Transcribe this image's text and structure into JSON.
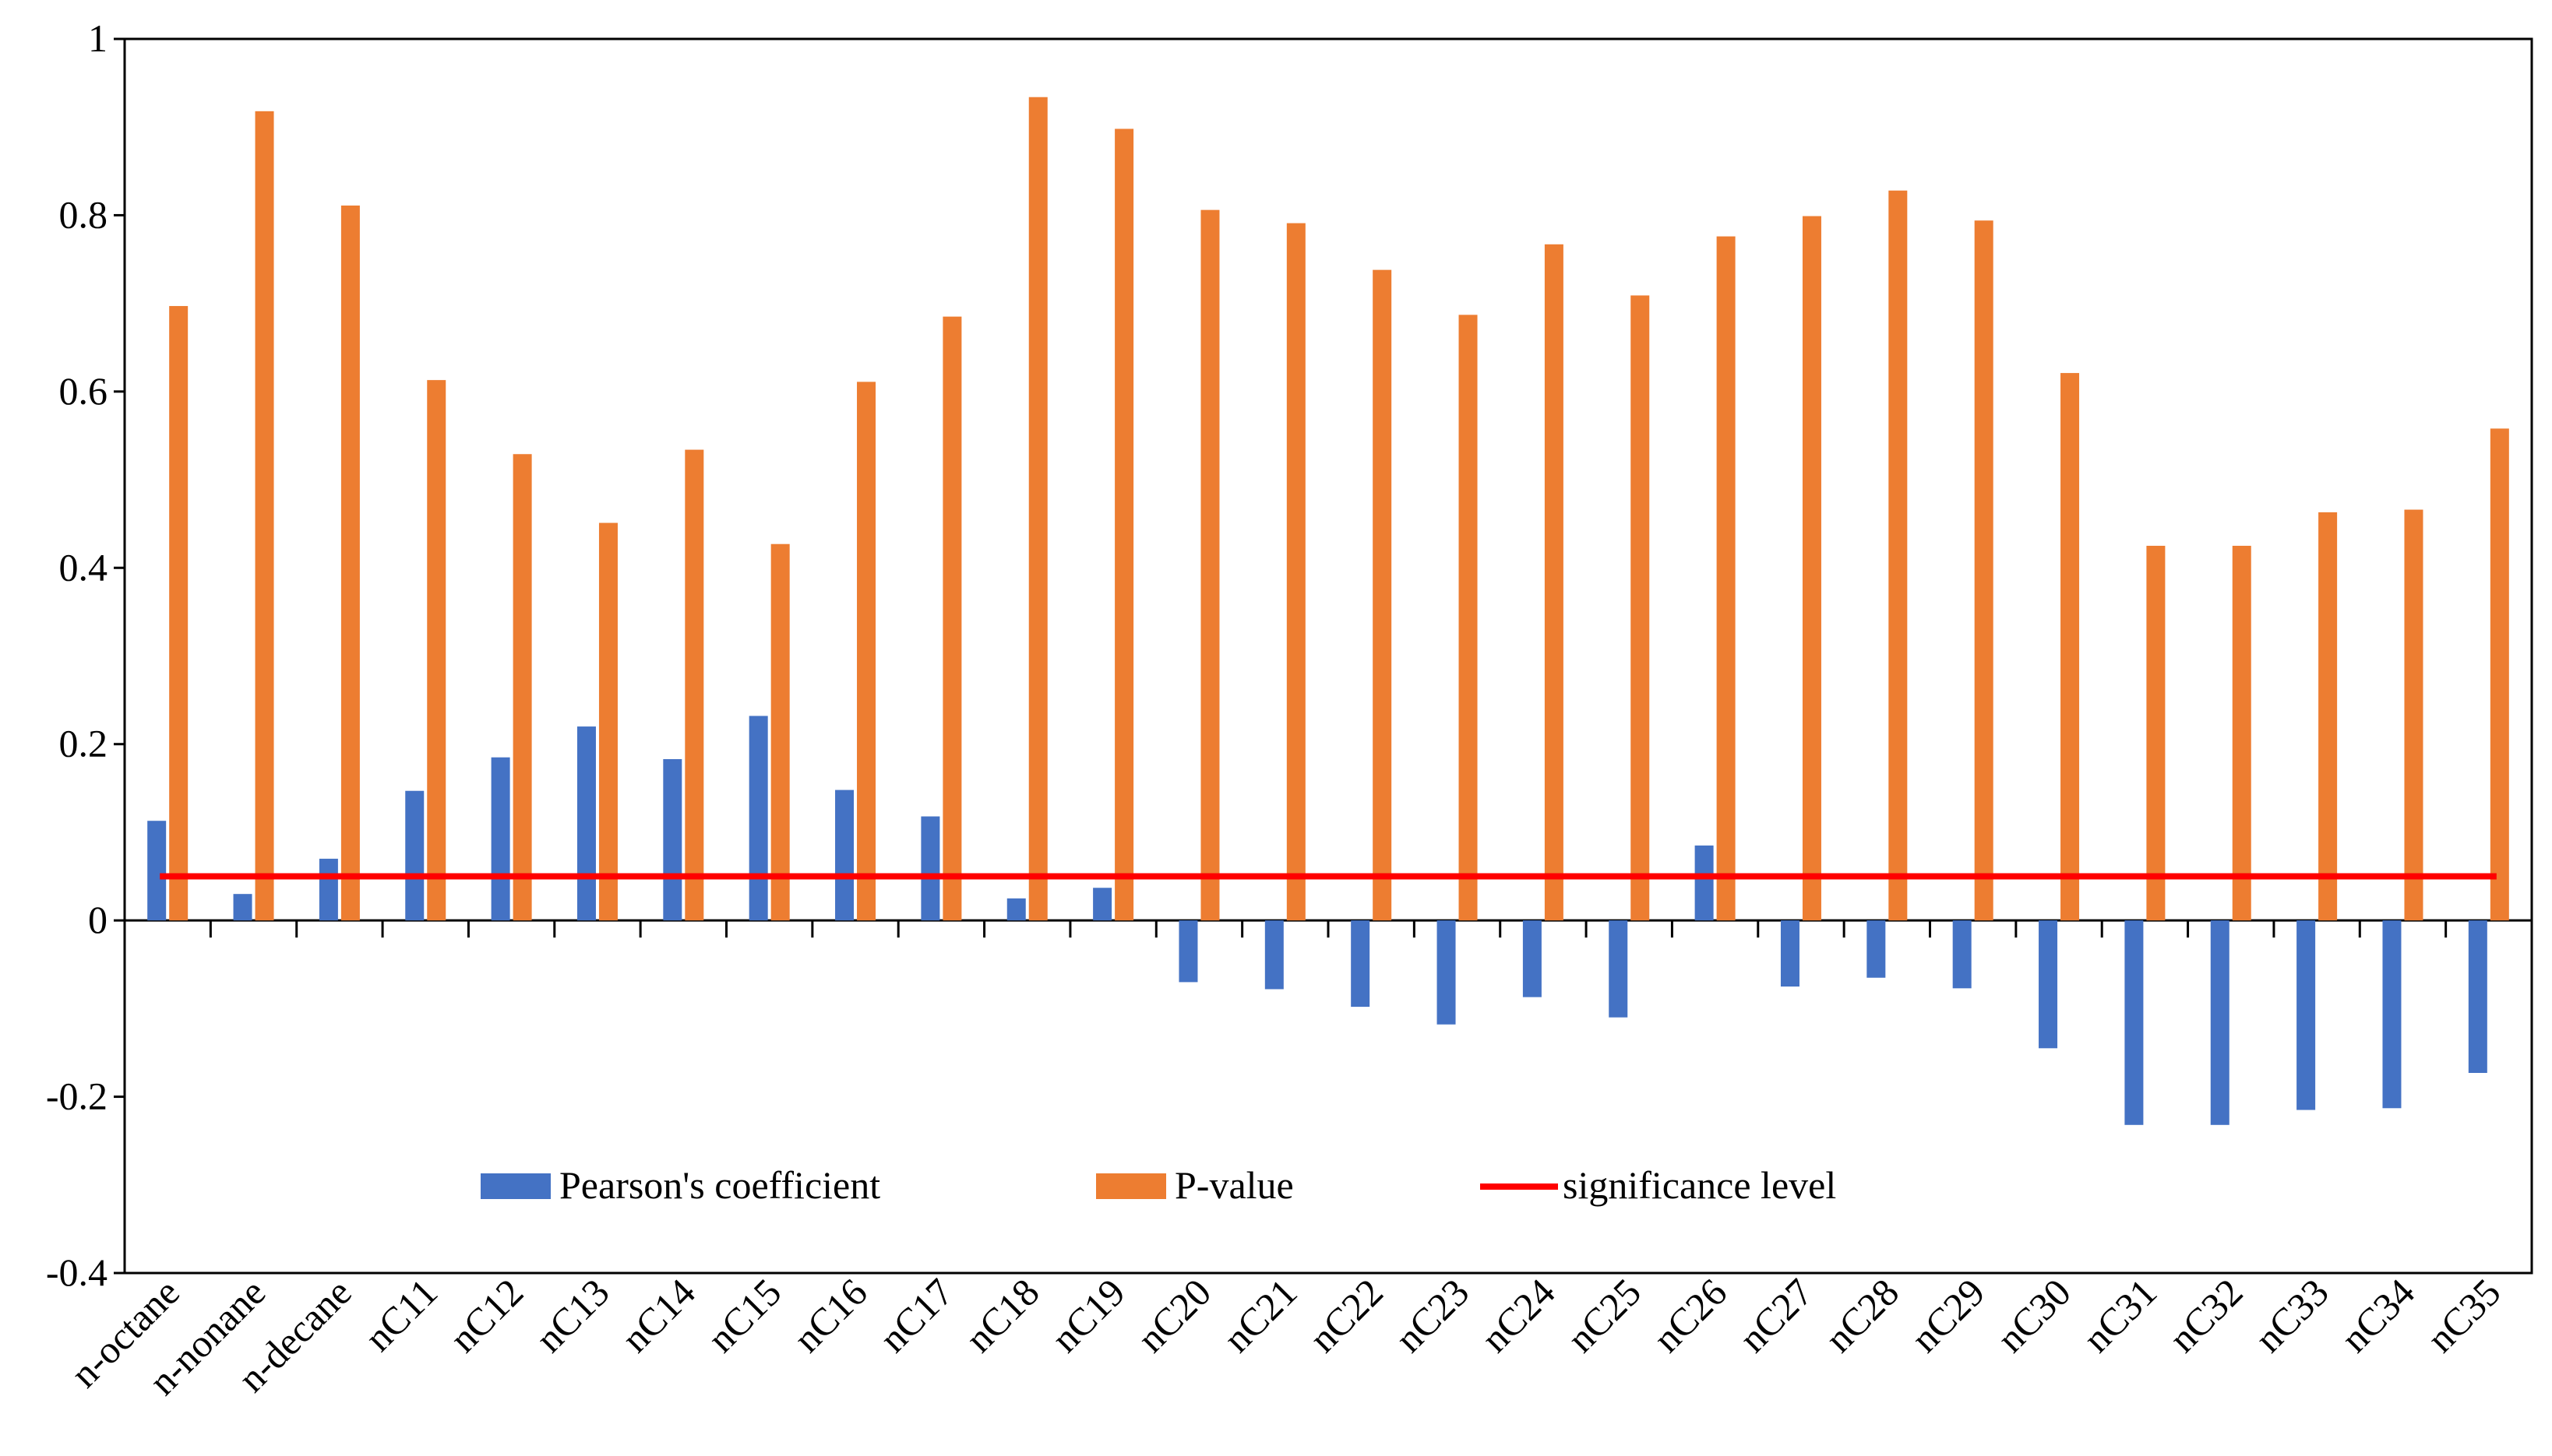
{
  "chart_data": {
    "type": "bar",
    "title": "",
    "xlabel": "",
    "ylabel": "",
    "ylim": [
      -0.4,
      1
    ],
    "yticks": [
      -0.4,
      -0.2,
      0,
      0.2,
      0.4,
      0.6,
      0.8,
      1
    ],
    "ytick_labels": [
      "-0.4",
      "-0.2",
      "0",
      "0.2",
      "0.4",
      "0.6",
      "0.8",
      "1"
    ],
    "grid": false,
    "legend_position": "bottom-center",
    "categories": [
      "n-octane",
      "n-nonane",
      "n-decane",
      "nC11",
      "nC12",
      "nC13",
      "nC14",
      "nC15",
      "nC16",
      "nC17",
      "nC18",
      "nC19",
      "nC20",
      "nC21",
      "nC22",
      "nC23",
      "nC24",
      "nC25",
      "nC26",
      "nC27",
      "nC28",
      "nC29",
      "nC30",
      "nC31",
      "nC32",
      "nC33",
      "nC34",
      "nC35"
    ],
    "series": [
      {
        "name": "Pearson's coefficient",
        "color": "#4472C4",
        "values": [
          0.113,
          0.03,
          0.07,
          0.147,
          0.185,
          0.22,
          0.183,
          0.232,
          0.148,
          0.118,
          0.025,
          0.037,
          -0.07,
          -0.078,
          -0.098,
          -0.118,
          -0.087,
          -0.11,
          0.085,
          -0.075,
          -0.065,
          -0.077,
          -0.145,
          -0.232,
          -0.232,
          -0.215,
          -0.213,
          -0.173
        ]
      },
      {
        "name": "P-value",
        "color": "#ED7D31",
        "values": [
          0.697,
          0.918,
          0.811,
          0.613,
          0.529,
          0.451,
          0.534,
          0.427,
          0.611,
          0.685,
          0.934,
          0.898,
          0.806,
          0.791,
          0.738,
          0.687,
          0.767,
          0.709,
          0.776,
          0.799,
          0.828,
          0.794,
          0.621,
          0.425,
          0.425,
          0.463,
          0.466,
          0.558
        ]
      }
    ],
    "reference_line": {
      "name": "significance level",
      "value": 0.05,
      "color": "#FF0000"
    }
  }
}
